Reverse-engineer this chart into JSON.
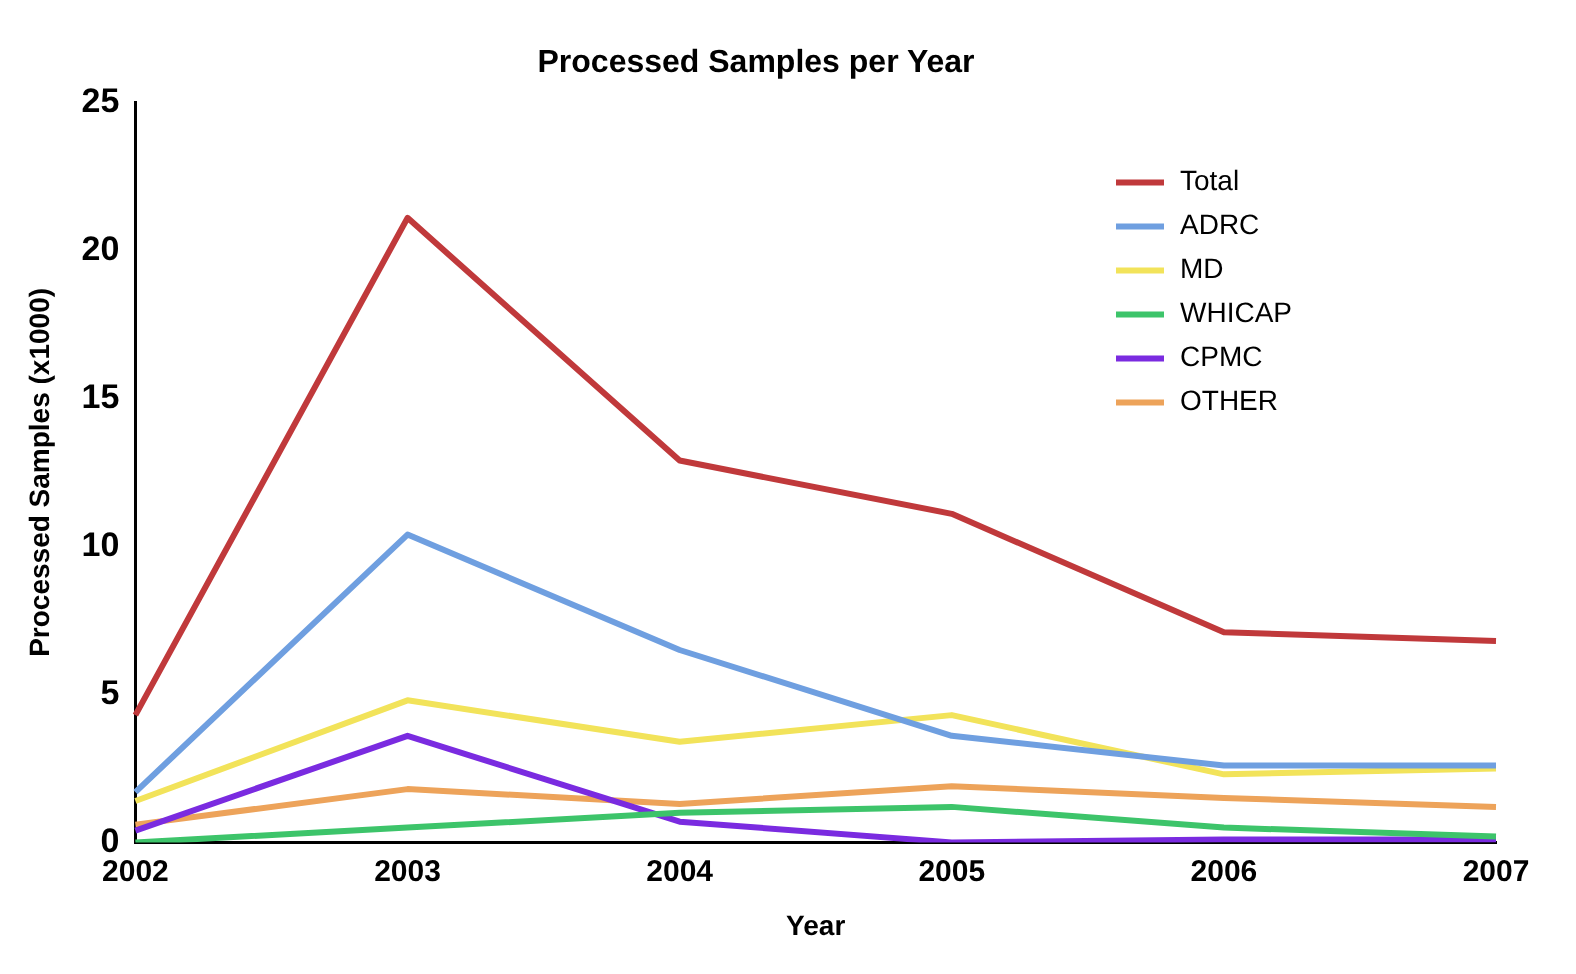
{
  "chart_data": {
    "type": "line",
    "title": "Processed Samples per Year",
    "xlabel": "Year",
    "ylabel": "Processed Samples (x1000)",
    "categories": [
      "2002",
      "2003",
      "2004",
      "2005",
      "2006",
      "2007"
    ],
    "series": [
      {
        "name": "Total",
        "color": "#c0393b",
        "values": [
          4.3,
          21.1,
          12.9,
          11.1,
          7.1,
          6.8
        ]
      },
      {
        "name": "ADRC",
        "color": "#6f9fe0",
        "values": [
          1.7,
          10.4,
          6.5,
          3.6,
          2.6,
          2.6
        ]
      },
      {
        "name": "MD",
        "color": "#f2e35a",
        "values": [
          1.4,
          4.8,
          3.4,
          4.3,
          2.3,
          2.5
        ]
      },
      {
        "name": "WHICAP",
        "color": "#3dc46a",
        "values": [
          0,
          0.5,
          1.0,
          1.2,
          0.5,
          0.2
        ]
      },
      {
        "name": "CPMC",
        "color": "#7a2be0",
        "values": [
          0.4,
          3.6,
          0.7,
          0,
          0.1,
          0.1
        ]
      },
      {
        "name": "OTHER",
        "color": "#eda35a",
        "values": [
          0.6,
          1.8,
          1.3,
          1.9,
          1.5,
          1.2
        ]
      }
    ],
    "ylim": [
      0,
      25
    ],
    "yticks": [
      0,
      5,
      10,
      15,
      20,
      25
    ],
    "grid": false,
    "legend": "top right",
    "marker": "none",
    "line_style": "solid"
  }
}
